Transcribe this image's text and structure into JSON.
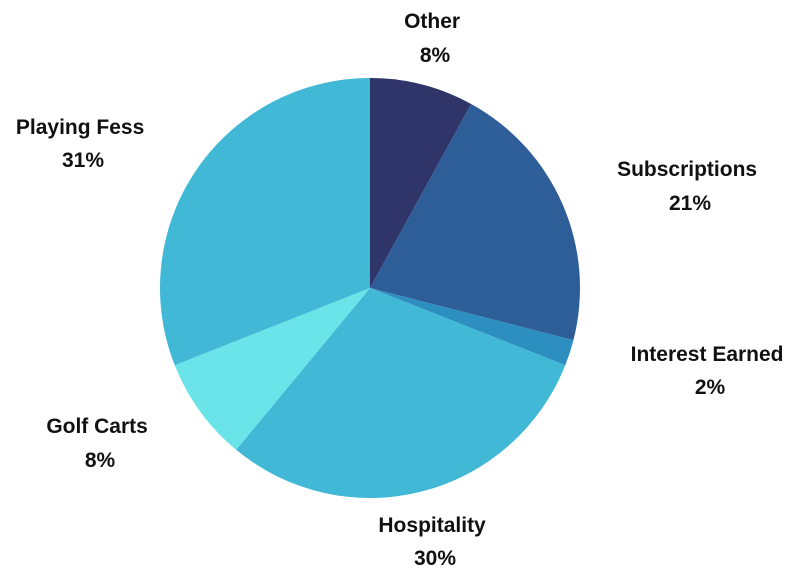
{
  "chart_data": {
    "type": "pie",
    "title": "",
    "slices": [
      {
        "label": "Other",
        "value": 8,
        "value_label": "8%",
        "color": "#2f3469"
      },
      {
        "label": "Subscriptions",
        "value": 21,
        "value_label": "21%",
        "color": "#2e5e98"
      },
      {
        "label": "Interest Earned",
        "value": 2,
        "value_label": "2%",
        "color": "#2d8ec0"
      },
      {
        "label": "Hospitality",
        "value": 30,
        "value_label": "30%",
        "color": "#41b8d6"
      },
      {
        "label": "Golf Carts",
        "value": 8,
        "value_label": "8%",
        "color": "#6ae4e8"
      },
      {
        "label": "Playing Fess",
        "value": 31,
        "value_label": "31%",
        "color": "#41b8d6"
      }
    ],
    "start_angle": "12 o'clock",
    "direction": "clockwise",
    "legend": "none"
  }
}
